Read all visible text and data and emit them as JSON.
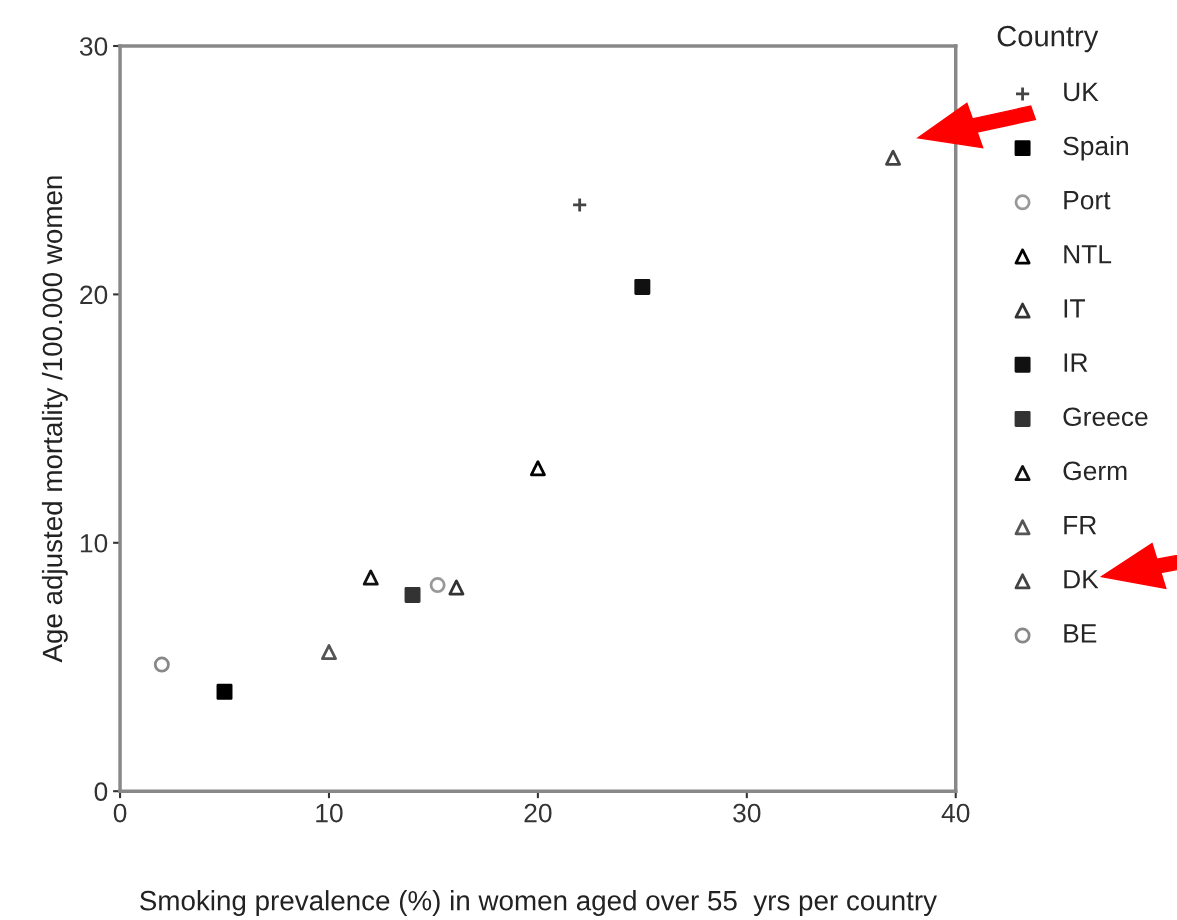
{
  "chart_data": {
    "type": "scatter",
    "xlabel": "Smoking prevalence (%) in women aged over 55  yrs per country",
    "ylabel": "Age adjusted mortality /100.000 women",
    "legend_title": "Country",
    "legend": "right",
    "xlim": [
      0,
      40
    ],
    "xticks": [
      0,
      10,
      20,
      30,
      40
    ],
    "ylim": [
      0,
      30
    ],
    "yticks": [
      0,
      10,
      20,
      30
    ],
    "grid": false,
    "series": [
      {
        "name": "UK",
        "color": "#444444",
        "marker": "cross",
        "x": [
          22
        ],
        "values": [
          23.6
        ]
      },
      {
        "name": "Spain",
        "color": "#000000",
        "marker": "square",
        "x": [
          5
        ],
        "values": [
          4.0
        ]
      },
      {
        "name": "Port",
        "color": "#999999",
        "marker": "circle",
        "x": [
          15.2
        ],
        "values": [
          8.3
        ]
      },
      {
        "name": "NTL",
        "color": "#000000",
        "marker": "triangle",
        "x": [
          20
        ],
        "values": [
          13.0
        ]
      },
      {
        "name": "IT",
        "color": "#333333",
        "marker": "triangle",
        "x": [
          16.1
        ],
        "values": [
          8.2
        ]
      },
      {
        "name": "IR",
        "color": "#111111",
        "marker": "square",
        "x": [
          25
        ],
        "values": [
          20.3
        ]
      },
      {
        "name": "Greece",
        "color": "#333333",
        "marker": "square",
        "x": [
          14
        ],
        "values": [
          7.9
        ]
      },
      {
        "name": "Germ",
        "color": "#111111",
        "marker": "triangle",
        "x": [
          12
        ],
        "values": [
          8.6
        ]
      },
      {
        "name": "FR",
        "color": "#555555",
        "marker": "triangle",
        "x": [
          10
        ],
        "values": [
          5.6
        ]
      },
      {
        "name": "DK",
        "color": "#444444",
        "marker": "triangle",
        "x": [
          37
        ],
        "values": [
          25.5
        ]
      },
      {
        "name": "BE",
        "color": "#888888",
        "marker": "circle",
        "x": [
          2
        ],
        "values": [
          5.1
        ]
      }
    ]
  }
}
